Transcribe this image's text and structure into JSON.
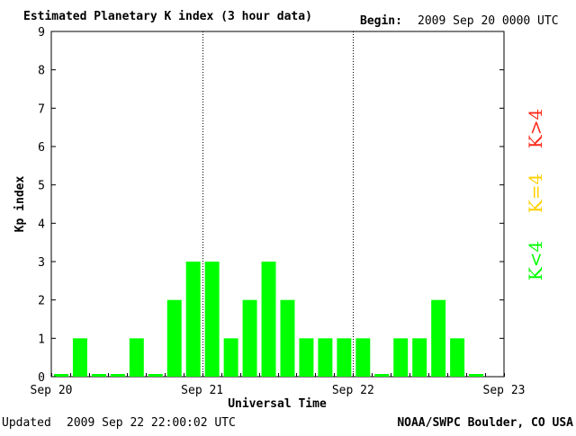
{
  "header": {
    "title": "Estimated Planetary K index (3 hour data)",
    "begin_label": "Begin:",
    "begin_value": "2009 Sep 20 0000 UTC"
  },
  "footer": {
    "updated_label": "Updated",
    "updated_value": "2009 Sep 22 22:00:02 UTC",
    "source": "NOAA/SWPC Boulder, CO USA"
  },
  "legend": [
    {
      "label": "K>4",
      "color": "#ff2a1a"
    },
    {
      "label": "K=4",
      "color": "#ffd000"
    },
    {
      "label": "K<4",
      "color": "#00ff00"
    }
  ],
  "chart_data": {
    "type": "bar",
    "title": "Estimated Planetary K index (3 hour data)",
    "xlabel": "Universal Time",
    "ylabel": "Kp index",
    "ylim": [
      0,
      9
    ],
    "yticks": [
      0,
      1,
      2,
      3,
      4,
      5,
      6,
      7,
      8,
      9
    ],
    "xticks": [
      "Sep 20",
      "Sep 21",
      "Sep 22",
      "Sep 23"
    ],
    "interval": "3 hour",
    "bar_color": "#00ff00",
    "values": [
      0,
      1,
      0,
      0,
      1,
      0,
      2,
      3,
      3,
      1,
      2,
      3,
      2,
      1,
      1,
      1,
      1,
      0,
      1,
      1,
      2,
      1,
      0
    ],
    "grid": false,
    "day_separators": "dotted"
  }
}
